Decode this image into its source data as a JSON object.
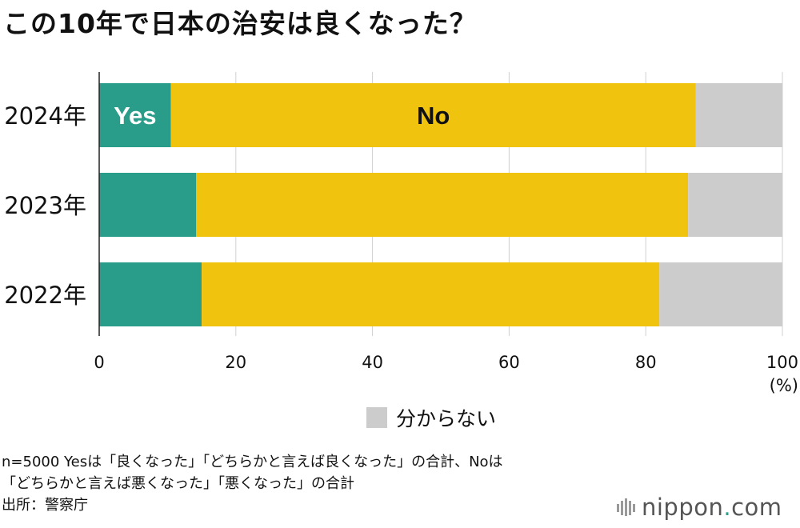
{
  "title": "この10年で日本の治安は良くなった？",
  "chart_data": {
    "type": "bar",
    "orientation": "horizontal",
    "stacked": true,
    "categories": [
      "2024年",
      "2023年",
      "2022年"
    ],
    "series": [
      {
        "name": "Yes",
        "values": [
          10.5,
          14.2,
          15
        ],
        "color": "#2a9d8a"
      },
      {
        "name": "No",
        "values": [
          76.8,
          72.0,
          67
        ],
        "color": "#f0c30f"
      },
      {
        "name": "分からない",
        "values": [
          12.7,
          13.8,
          18
        ],
        "color": "#cccccc"
      }
    ],
    "inline_labels": {
      "Yes": "Yes",
      "No": "No"
    },
    "xlim": [
      0,
      100
    ],
    "xticks": [
      "0",
      "20",
      "40",
      "60",
      "80",
      "100"
    ],
    "xlabel": "(%)",
    "grid": true,
    "legend": {
      "entries": [
        "分からない"
      ],
      "placement": "bottom-center"
    }
  },
  "notes": [
    "n=5000 Yesは「良くなった」「どちらかと言えば良くなった」の合計、Noは",
    "「どちらかと言えば悪くなった」「悪くなった」の合計",
    "出所：警察庁"
  ],
  "brand": {
    "name": "nippon",
    "dot": ".",
    "suffix": "com"
  }
}
